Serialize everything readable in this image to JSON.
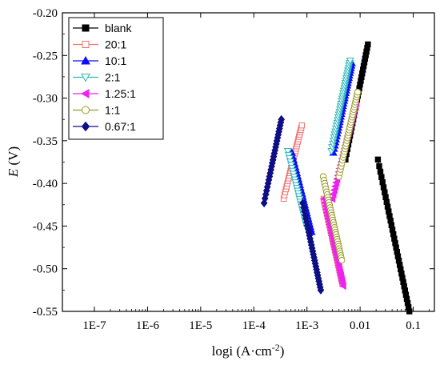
{
  "chart_data": {
    "type": "scatter",
    "xlabel_main": "logi",
    "xlabel_unit": "(A·cm",
    "xlabel_exp": "-2",
    "xlabel_close": ")",
    "ylabel_italic": "E",
    "ylabel_unit": "(V)",
    "x_scale": "log",
    "xlim": [
      2.5e-08,
      0.25
    ],
    "ylim": [
      -0.55,
      -0.2
    ],
    "x_tick_values": [
      1e-07,
      1e-06,
      1e-05,
      0.0001,
      0.001,
      0.01,
      0.1
    ],
    "x_tick_labels": [
      "1E-7",
      "1E-6",
      "1E-5",
      "1E-4",
      "1E-3",
      "0.01",
      "0.1"
    ],
    "y_tick_values": [
      -0.55,
      -0.5,
      -0.45,
      -0.4,
      -0.35,
      -0.3,
      -0.25,
      -0.2
    ],
    "y_tick_labels": [
      "-0.55",
      "-0.50",
      "-0.45",
      "-0.40",
      "-0.35",
      "-0.30",
      "-0.25",
      "-0.20"
    ],
    "grid": false,
    "legend_position": "top-left",
    "series": [
      {
        "name": "blank",
        "color": "#000000",
        "marker": "square",
        "filled": true,
        "corrosion_potential": -0.372,
        "i_start": 0.0001,
        "anodic": {
          "i_end": 0.014,
          "e_end": -0.237,
          "k": 0.32
        },
        "cathodic": {
          "i_end": 0.0055,
          "e_end": -0.55,
          "k": 0.3
        },
        "n_anodic": 30,
        "n_cathodic": 34
      },
      {
        "name": "20:1",
        "color": "#f07070",
        "marker": "square",
        "filled": false,
        "corrosion_potential": -0.418,
        "i_start": 9.5e-06,
        "anodic": {
          "i_end": 0.0008,
          "e_end": -0.332,
          "k": 0.25
        },
        "cathodic": {
          "i_end": 0.0009,
          "e_end": -0.518,
          "k": 0.28
        },
        "n_anodic": 30,
        "n_cathodic": 34
      },
      {
        "name": "10:1",
        "color": "#0a0aff",
        "marker": "triangle-up",
        "filled": true,
        "corrosion_potential": -0.364,
        "i_start": 1.6e-06,
        "anodic": {
          "i_end": 0.007,
          "e_end": -0.259,
          "k": 0.3
        },
        "cathodic": {
          "i_end": 0.00022,
          "e_end": -0.457,
          "k": 0.25
        },
        "n_anodic": 34,
        "n_cathodic": 28
      },
      {
        "name": "2:1",
        "color": "#2ab7b7",
        "marker": "triangle-down",
        "filled": false,
        "corrosion_potential": -0.362,
        "i_start": 2e-08,
        "anodic": {
          "i_end": 0.0065,
          "e_end": -0.256,
          "k": 0.3
        },
        "cathodic": {
          "i_end": 0.00019,
          "e_end": -0.452,
          "k": 0.25
        },
        "n_anodic": 34,
        "n_cathodic": 28
      },
      {
        "name": "1.25:1",
        "color": "#ee22ee",
        "marker": "triangle-left",
        "filled": true,
        "corrosion_potential": -0.418,
        "i_start": 9e-06,
        "anodic": {
          "i_end": 0.0085,
          "e_end": -0.305,
          "k": 0.25
        },
        "cathodic": {
          "i_end": 0.0009,
          "e_end": -0.52,
          "k": 0.28
        },
        "n_anodic": 30,
        "n_cathodic": 32
      },
      {
        "name": "1:1",
        "color": "#9a9a2a",
        "marker": "circle",
        "filled": false,
        "corrosion_potential": -0.392,
        "i_start": 6.8e-06,
        "anodic": {
          "i_end": 0.009,
          "e_end": -0.293,
          "k": 0.28
        },
        "cathodic": {
          "i_end": 0.0009,
          "e_end": -0.49,
          "k": 0.28
        },
        "n_anodic": 32,
        "n_cathodic": 34
      },
      {
        "name": "0.67:1",
        "color": "#0e0e85",
        "marker": "diamond",
        "filled": true,
        "corrosion_potential": -0.423,
        "i_start": 6.8e-07,
        "anodic": {
          "i_end": 0.00033,
          "e_end": -0.325,
          "k": 0.3
        },
        "cathodic": {
          "i_end": 0.00038,
          "e_end": -0.525,
          "k": 0.3
        },
        "n_anodic": 26,
        "n_cathodic": 28
      }
    ]
  }
}
